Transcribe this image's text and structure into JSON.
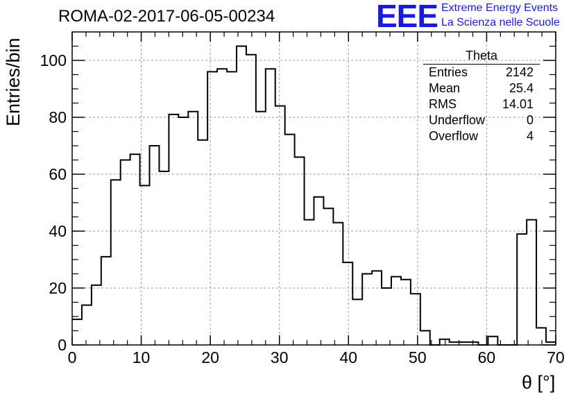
{
  "title": "ROMA-02-2017-06-05-00234",
  "logo": {
    "letters": "EEE",
    "line1": "Extreme Energy Events",
    "line2": "La Scienza nelle Scuole",
    "color": "#1a1adc"
  },
  "stats": {
    "name": "Theta",
    "rows": [
      {
        "label": "Entries",
        "value": "2142"
      },
      {
        "label": "Mean",
        "value": "25.4"
      },
      {
        "label": "RMS",
        "value": "14.01"
      },
      {
        "label": "Underflow",
        "value": "0"
      },
      {
        "label": "Overflow",
        "value": "4"
      }
    ]
  },
  "chart_data": {
    "type": "histogram",
    "xlabel": "θ [°]",
    "ylabel": "Entries/bin",
    "xlim": [
      0,
      70
    ],
    "ylim": [
      0,
      110
    ],
    "bin_width": 1.4,
    "x_ticks": [
      0,
      10,
      20,
      30,
      40,
      50,
      60,
      70
    ],
    "y_ticks": [
      0,
      20,
      40,
      60,
      80,
      100
    ],
    "grid": true,
    "bin_edges_start": 0,
    "values": [
      9,
      14,
      21,
      31,
      58,
      65,
      67,
      56,
      70,
      61,
      81,
      80,
      82,
      72,
      96,
      97,
      96,
      105,
      102,
      82,
      97,
      84,
      74,
      66,
      44,
      52,
      48,
      43,
      29,
      16,
      25,
      26,
      20,
      24,
      23,
      18,
      5,
      0,
      2,
      1,
      1,
      1,
      0,
      3,
      0,
      0,
      39,
      44,
      6,
      1
    ]
  }
}
